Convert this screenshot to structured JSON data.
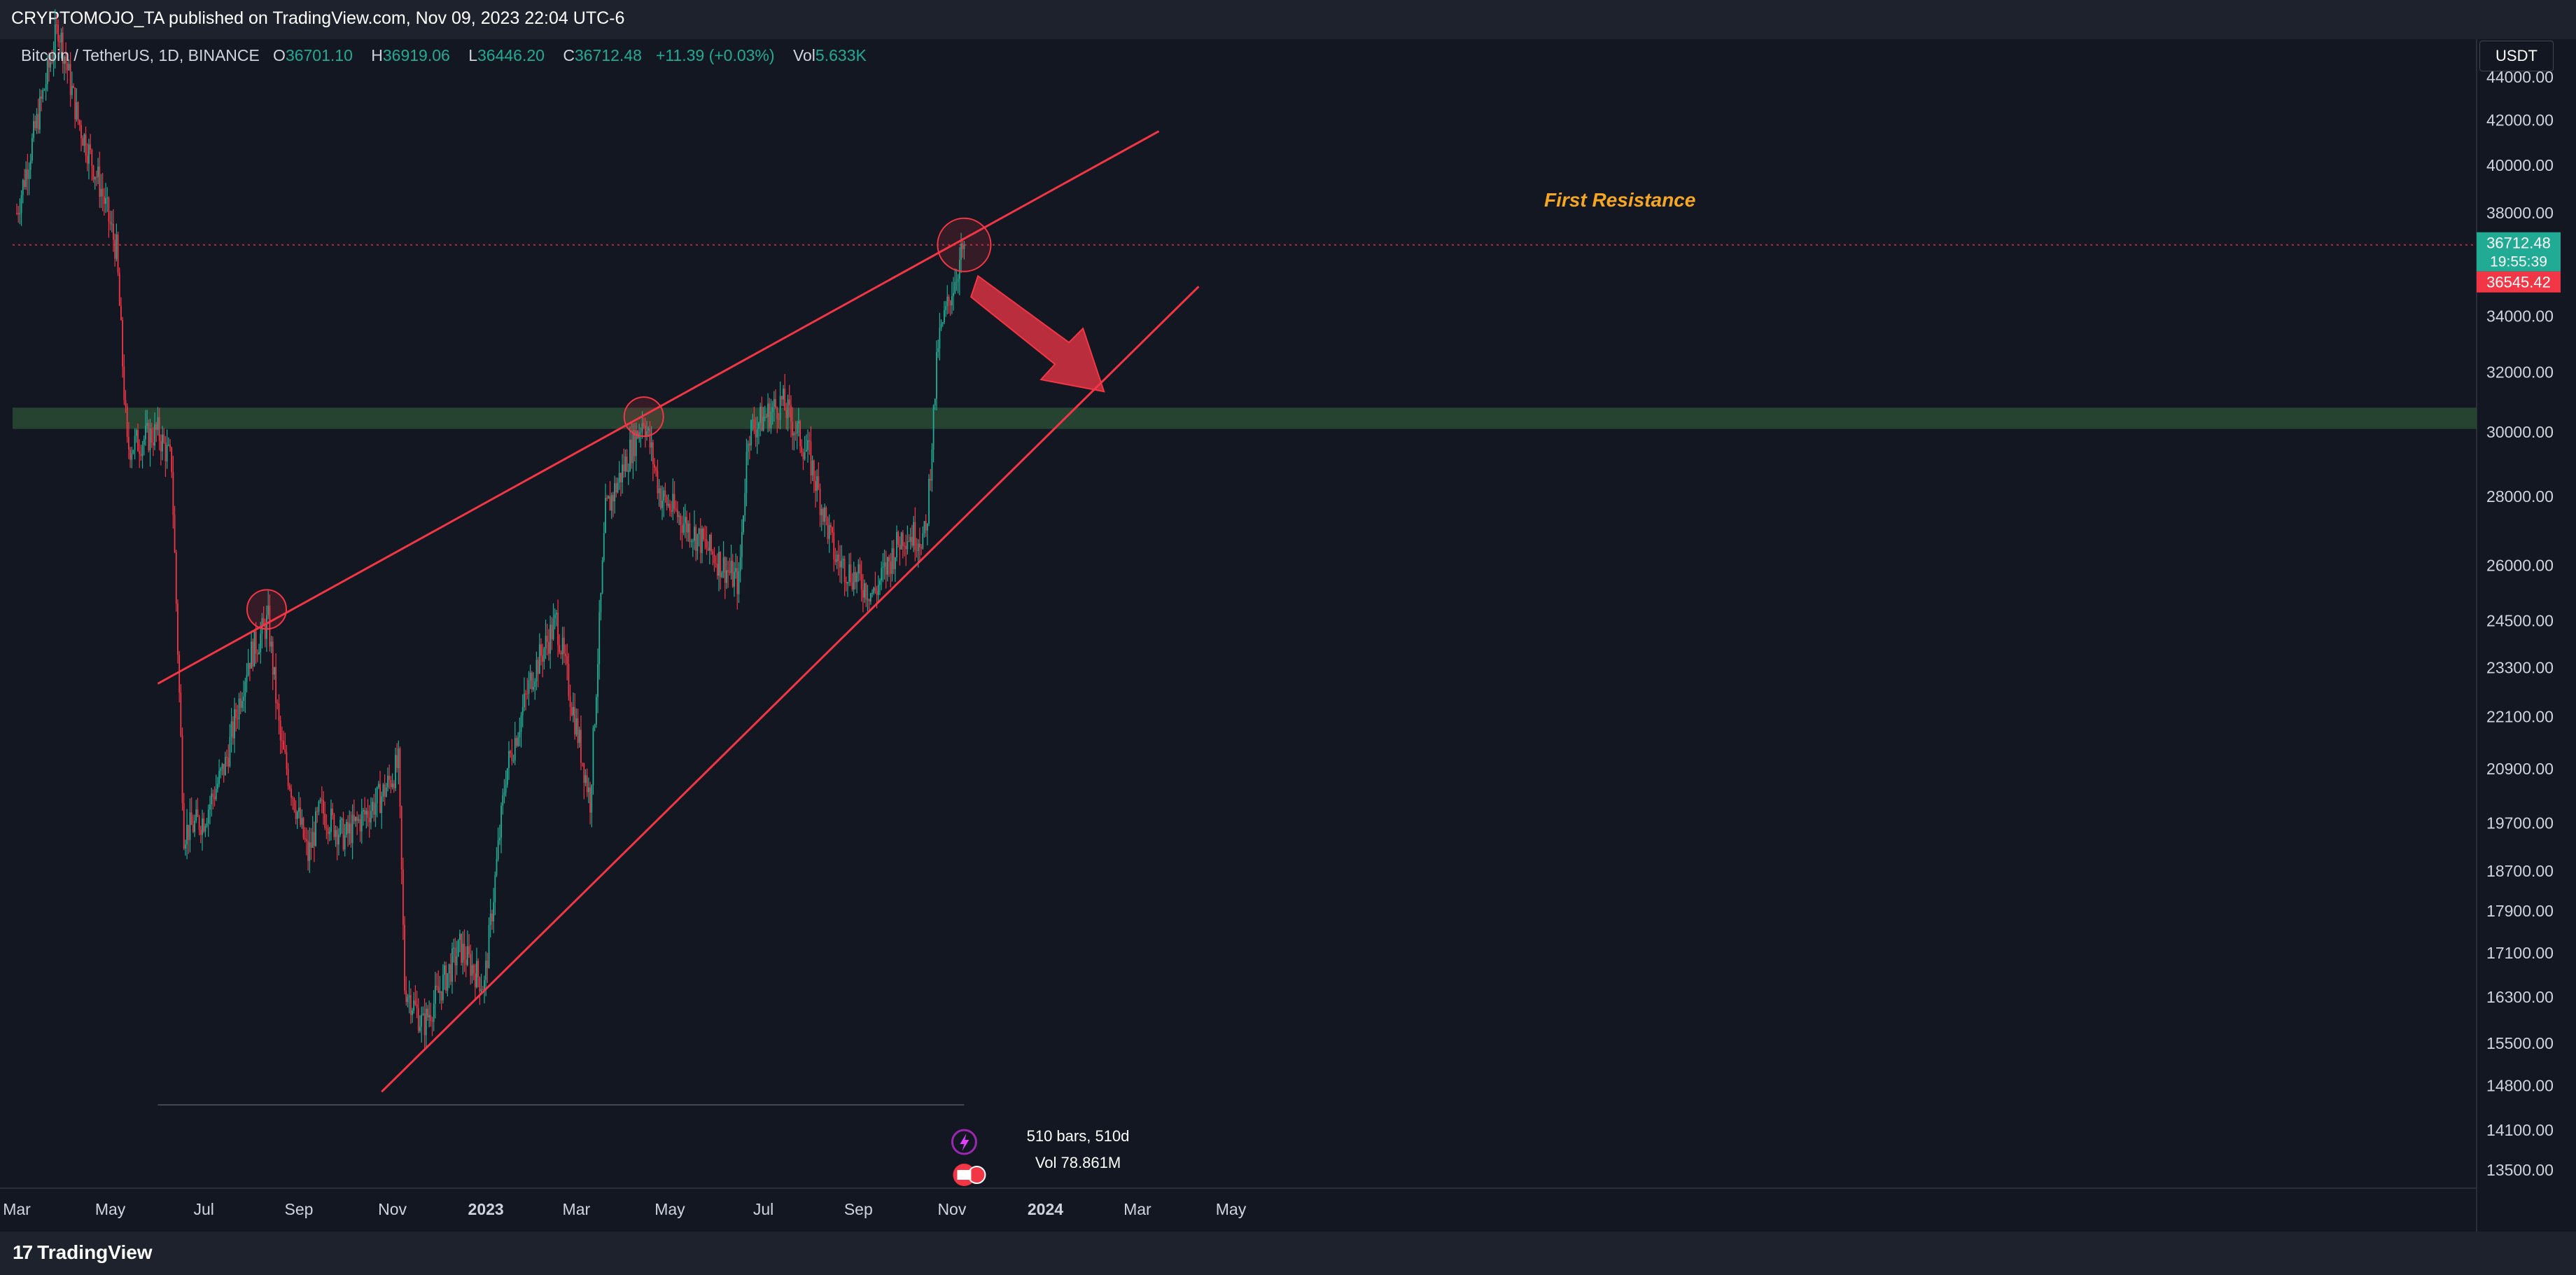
{
  "header": {
    "published": "CRYPTOMOJO_TA published on TradingView.com, Nov 09, 2023 22:04 UTC-6"
  },
  "symbol": {
    "name": "Bitcoin / TetherUS, 1D, BINANCE",
    "open_label": "O",
    "open": "36701.10",
    "high_label": "H",
    "high": "36919.06",
    "low_label": "L",
    "low": "36446.20",
    "close_label": "C",
    "close": "36712.48",
    "change": "+11.39 (+0.03%)",
    "vol_label": "Vol",
    "vol": "5.633K"
  },
  "currency_button": "USDT",
  "price_tags": {
    "last": "36712.48",
    "countdown": "19:55:39",
    "second": "36545.42"
  },
  "annotation": "First Resistance",
  "stats": {
    "bars": "510 bars, 510d",
    "volume": "Vol 78.861M"
  },
  "footer": {
    "brand": "TradingView",
    "mark": "17"
  },
  "colors": {
    "up": "#22ab94",
    "down": "#f23645",
    "trendline": "#f23645",
    "zone": "#2a4a32",
    "annotation": "#f5a623",
    "background": "#131722"
  },
  "chart_data": {
    "type": "candlestick",
    "symbol": "Bitcoin / TetherUS",
    "timeframe": "1D",
    "exchange": "BINANCE",
    "y_axis_labels": [
      "44000.00",
      "42000.00",
      "40000.00",
      "38000.00",
      "34000.00",
      "32000.00",
      "30000.00",
      "28000.00",
      "26000.00",
      "24500.00",
      "23300.00",
      "22100.00",
      "20900.00",
      "19700.00",
      "18700.00",
      "17900.00",
      "17100.00",
      "16300.00",
      "15500.00",
      "14800.00",
      "14100.00",
      "13500.00"
    ],
    "y_axis_values": [
      44000,
      42000,
      40000,
      38000,
      34000,
      32000,
      30000,
      28000,
      26000,
      24500,
      23300,
      22100,
      20900,
      19700,
      18700,
      17900,
      17100,
      16300,
      15500,
      14800,
      14100,
      13500
    ],
    "x_axis_labels": [
      "Mar",
      "May",
      "Jul",
      "Sep",
      "Nov",
      "2023",
      "Mar",
      "May",
      "Jul",
      "Sep",
      "Nov",
      "2024",
      "Mar",
      "May"
    ],
    "x_axis_dates": [
      "2022-03-01",
      "2022-05-01",
      "2022-07-01",
      "2022-09-01",
      "2022-11-01",
      "2023-01-01",
      "2023-03-01",
      "2023-05-01",
      "2023-07-01",
      "2023-09-01",
      "2023-11-01",
      "2024-01-01",
      "2024-03-01",
      "2024-05-01"
    ],
    "y_scale": "log",
    "ylim": [
      13000,
      45000
    ],
    "price_path": [
      [
        "2022-03-01",
        38000
      ],
      [
        "2022-03-28",
        46500
      ],
      [
        "2022-04-10",
        42000
      ],
      [
        "2022-04-25",
        39000
      ],
      [
        "2022-05-05",
        36500
      ],
      [
        "2022-05-12",
        29500
      ],
      [
        "2022-06-01",
        30000
      ],
      [
        "2022-06-10",
        29000
      ],
      [
        "2022-06-18",
        19500
      ],
      [
        "2022-07-01",
        19800
      ],
      [
        "2022-07-15",
        21000
      ],
      [
        "2022-07-30",
        23500
      ],
      [
        "2022-08-12",
        24500
      ],
      [
        "2022-08-20",
        21500
      ],
      [
        "2022-09-07",
        19000
      ],
      [
        "2022-09-15",
        20000
      ],
      [
        "2022-10-01",
        19400
      ],
      [
        "2022-10-25",
        20300
      ],
      [
        "2022-11-05",
        21000
      ],
      [
        "2022-11-09",
        16500
      ],
      [
        "2022-11-21",
        15800
      ],
      [
        "2022-12-15",
        17200
      ],
      [
        "2022-12-31",
        16500
      ],
      [
        "2023-01-14",
        20800
      ],
      [
        "2023-01-31",
        23100
      ],
      [
        "2023-02-16",
        24500
      ],
      [
        "2023-03-10",
        20200
      ],
      [
        "2023-03-20",
        27500
      ],
      [
        "2023-04-14",
        30500
      ],
      [
        "2023-04-25",
        28000
      ],
      [
        "2023-05-15",
        27000
      ],
      [
        "2023-06-15",
        25500
      ],
      [
        "2023-06-21",
        30000
      ],
      [
        "2023-07-13",
        31000
      ],
      [
        "2023-07-31",
        29200
      ],
      [
        "2023-08-17",
        26200
      ],
      [
        "2023-09-11",
        25200
      ],
      [
        "2023-09-30",
        26900
      ],
      [
        "2023-10-15",
        26800
      ],
      [
        "2023-10-23",
        33000
      ],
      [
        "2023-11-01",
        35000
      ],
      [
        "2023-11-09",
        36712.48
      ]
    ],
    "horizontal_zone": {
      "low": 30100,
      "high": 30800
    },
    "trendlines": [
      {
        "name": "upper",
        "points": [
          [
            "2022-06-01",
            22900
          ],
          [
            "2024-03-15",
            41500
          ]
        ]
      },
      {
        "name": "lower",
        "points": [
          [
            "2022-10-25",
            14700
          ],
          [
            "2024-04-10",
            35100
          ]
        ]
      }
    ],
    "highlight_circles": [
      [
        "2022-08-11",
        24800
      ],
      [
        "2023-04-14",
        30500
      ],
      [
        "2023-11-09",
        36712
      ]
    ],
    "last_price": 36712.48,
    "annotation": "First Resistance",
    "bars": 510
  }
}
